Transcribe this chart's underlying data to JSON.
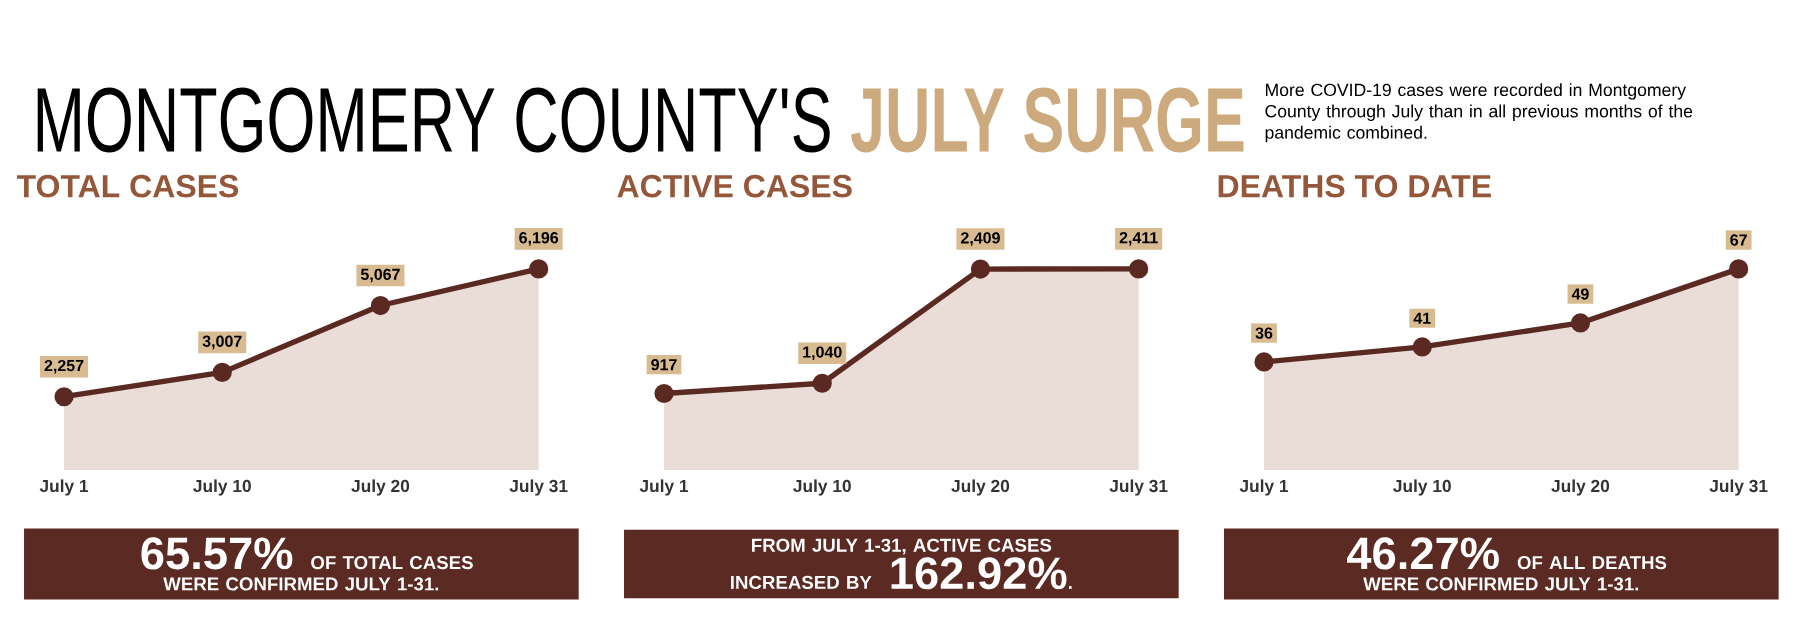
{
  "chart_data": [
    {
      "type": "other",
      "title": "MONTGOMERY COUNTY'S **JULY SURGE**",
      "subtitle": "More COVID-19 cases were recorded in Montgomery County through July than in all previous months of the pandemic combined."
    },
    {
      "type": "area",
      "title": "TOTAL CASES",
      "categories": [
        "July 1",
        "July 10",
        "July 20",
        "July 31"
      ],
      "values": [
        2257,
        3007,
        5067,
        6196
      ],
      "value_labels": [
        "2,257",
        "3,007",
        "5,067",
        "6,196"
      ],
      "color": "#5a2a22",
      "marker": "circle",
      "annotations": [
        "**65.57%** OF TOTAL CASES WERE CONFIRMED JULY 1-31."
      ]
    },
    {
      "type": "area",
      "title": "ACTIVE CASES",
      "categories": [
        "July 1",
        "July 10",
        "July 20",
        "July 31"
      ],
      "values": [
        917,
        1040,
        2409,
        2411
      ],
      "value_labels": [
        "917",
        "1,040",
        "2,409",
        "2,411"
      ],
      "color": "#5a2a22",
      "marker": "circle",
      "annotations": [
        "FROM JULY 1-31, ACTIVE CASES INCREASED BY **162.92%**."
      ]
    },
    {
      "type": "area",
      "title": "DEATHS TO DATE",
      "categories": [
        "July 1",
        "July 10",
        "July 20",
        "July 31"
      ],
      "values": [
        36,
        41,
        49,
        67
      ],
      "value_labels": [
        "36",
        "41",
        "49",
        "67"
      ],
      "color": "#5a2a22",
      "marker": "circle",
      "annotations": [
        "**46.27%** OF ALL DEATHS WERE CONFIRMED JULY 1-31."
      ]
    }
  ]
}
